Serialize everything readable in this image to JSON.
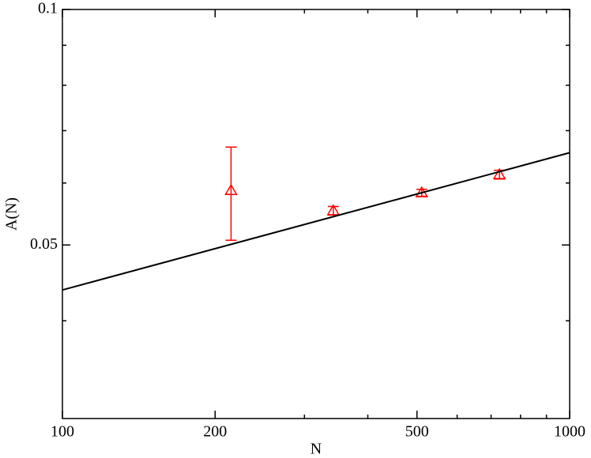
{
  "chart_data": {
    "type": "scatter",
    "xlabel": "N",
    "ylabel": "A(N)",
    "xscale": "log",
    "yscale": "log",
    "xlim": [
      100,
      1000
    ],
    "ylim": [
      0.03,
      0.1
    ],
    "xticks": [
      100,
      200,
      500,
      1000
    ],
    "yticks": [
      0.05,
      0.1
    ],
    "xminor": [
      300,
      400,
      600,
      700,
      800,
      900
    ],
    "yminor": [
      0.04,
      0.06,
      0.07,
      0.08,
      0.09
    ],
    "series": [
      {
        "type": "scatter",
        "color": "#ff0000",
        "x": [
          215,
          342,
          511,
          727
        ],
        "values": [
          0.0587,
          0.0553,
          0.0583,
          0.0615
        ],
        "errors": [
          0.008,
          0.0007,
          0.0006,
          0.0008
        ]
      },
      {
        "type": "line",
        "color": "#000000",
        "x": [
          100,
          1000
        ],
        "values": [
          0.0438,
          0.0656
        ]
      }
    ]
  }
}
